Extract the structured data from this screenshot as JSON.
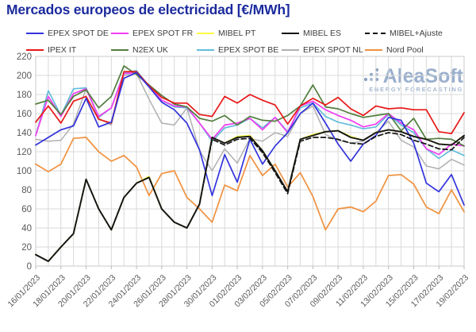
{
  "header": {
    "title": "Mercados europeos de electricidad [€/MWh]"
  },
  "watermark": {
    "brand": "AleaSoft",
    "tagline": "ENERGY FORECASTING"
  },
  "colors": {
    "title": "#1c2b9d",
    "grid": "#d9d9d9",
    "axis_text": "#595959",
    "legend_text": "#3d3d3d",
    "logo": "#92a9c9"
  },
  "chart_data": {
    "type": "line",
    "title": "Mercados europeos de electricidad [€/MWh]",
    "xlabel": "",
    "ylabel": "",
    "ylim": [
      0,
      220
    ],
    "y_ticks": [
      0,
      20,
      40,
      60,
      80,
      100,
      120,
      140,
      160,
      180,
      200,
      220
    ],
    "grid": true,
    "legend_position": "top",
    "x": [
      "16/01/2023",
      "17/01/2023",
      "18/01/2023",
      "19/01/2023",
      "20/01/2023",
      "21/01/2023",
      "22/01/2023",
      "23/01/2023",
      "24/01/2023",
      "25/01/2023",
      "26/01/2023",
      "27/01/2023",
      "28/01/2023",
      "29/01/2023",
      "30/01/2023",
      "31/01/2023",
      "01/02/2023",
      "02/02/2023",
      "03/02/2023",
      "04/02/2023",
      "05/02/2023",
      "06/02/2023",
      "07/02/2023",
      "08/02/2023",
      "09/02/2023",
      "10/02/2023",
      "11/02/2023",
      "12/02/2023",
      "13/02/2023",
      "14/02/2023",
      "15/02/2023",
      "16/02/2023",
      "17/02/2023",
      "18/02/2023",
      "19/02/2023"
    ],
    "x_tick_labels": [
      "16/01/2023",
      "18/01/2023",
      "20/01/2023",
      "22/01/2023",
      "24/01/2023",
      "26/01/2023",
      "28/01/2023",
      "30/01/2023",
      "01/02/2023",
      "03/02/2023",
      "05/02/2023",
      "07/02/2023",
      "09/02/2023",
      "11/02/2023",
      "13/02/2023",
      "15/02/2023",
      "17/02/2023",
      "19/02/2023"
    ],
    "x_tick_step": 2,
    "series": [
      {
        "name": "EPEX SPOT DE",
        "color": "#3233dd",
        "dash": null,
        "width": 1.7,
        "values": [
          127,
          135,
          143,
          147,
          176,
          146,
          151,
          197,
          203,
          188,
          172,
          164,
          150,
          122,
          74,
          117,
          88,
          133,
          107,
          126,
          140,
          160,
          171,
          150,
          128,
          110,
          128,
          137,
          156,
          153,
          129,
          87,
          78,
          96,
          64
        ]
      },
      {
        "name": "EPEX SPOT FR",
        "color": "#f23cf2",
        "dash": null,
        "width": 1.7,
        "values": [
          137,
          178,
          157,
          181,
          186,
          157,
          166,
          202,
          203,
          188,
          174,
          168,
          167,
          150,
          133,
          148,
          150,
          155,
          143,
          156,
          140,
          168,
          173,
          164,
          158,
          153,
          146,
          149,
          160,
          150,
          143,
          123,
          117,
          128,
          126
        ]
      },
      {
        "name": "MIBEL PT",
        "color": "#ffff45",
        "dash": null,
        "width": 1.8,
        "values": [
          12,
          5,
          20,
          34,
          91,
          60,
          38,
          72,
          87,
          94,
          60,
          46,
          40,
          65,
          135,
          129,
          136,
          137,
          121,
          100,
          78,
          133,
          138,
          141,
          142,
          136,
          132,
          140,
          143,
          141,
          136,
          133,
          128,
          127,
          137
        ]
      },
      {
        "name": "MIBEL ES",
        "color": "#141414",
        "dash": null,
        "width": 1.9,
        "values": [
          12,
          5,
          20,
          34,
          91,
          60,
          38,
          72,
          87,
          93,
          60,
          46,
          40,
          65,
          135,
          129,
          135,
          136,
          121,
          100,
          78,
          133,
          137,
          141,
          142,
          135,
          132,
          140,
          143,
          141,
          136,
          133,
          128,
          127,
          137
        ]
      },
      {
        "name": "MIBEL+Ajuste",
        "color": "#141414",
        "dash": "6,3.5",
        "width": 1.7,
        "values": [
          12,
          5,
          20,
          34,
          91,
          60,
          38,
          72,
          87,
          93,
          60,
          46,
          40,
          65,
          133,
          127,
          133,
          134,
          119,
          98,
          76,
          131,
          135,
          135,
          133,
          129,
          128,
          136,
          140,
          138,
          132,
          128,
          123,
          122,
          135
        ]
      },
      {
        "name": "IPEX IT",
        "color": "#e81717",
        "dash": null,
        "width": 1.7,
        "values": [
          151,
          168,
          150,
          173,
          178,
          154,
          150,
          204,
          204,
          189,
          177,
          171,
          171,
          159,
          157,
          178,
          171,
          180,
          174,
          169,
          149,
          168,
          176,
          169,
          177,
          165,
          158,
          168,
          165,
          166,
          164,
          164,
          141,
          139,
          161
        ]
      },
      {
        "name": "N2EX UK",
        "color": "#527e3f",
        "dash": null,
        "width": 1.7,
        "values": [
          170,
          174,
          159,
          178,
          185,
          166,
          178,
          210,
          201,
          190,
          179,
          170,
          167,
          155,
          152,
          158,
          148,
          157,
          153,
          152,
          158,
          168,
          190,
          167,
          165,
          160,
          156,
          158,
          160,
          142,
          155,
          133,
          134,
          133,
          126
        ]
      },
      {
        "name": "EPEX SPOT BE",
        "color": "#63bdda",
        "dash": null,
        "width": 1.7,
        "values": [
          137,
          184,
          158,
          186,
          187,
          156,
          166,
          203,
          205,
          189,
          174,
          167,
          166,
          150,
          131,
          145,
          148,
          155,
          145,
          156,
          141,
          166,
          171,
          157,
          151,
          148,
          144,
          146,
          159,
          148,
          140,
          123,
          113,
          122,
          116
        ]
      },
      {
        "name": "EPEX SPOT NL",
        "color": "#b0b0b0",
        "dash": null,
        "width": 1.5,
        "values": [
          133,
          131,
          132,
          149,
          186,
          155,
          148,
          200,
          202,
          175,
          150,
          148,
          166,
          121,
          100,
          123,
          108,
          134,
          131,
          140,
          136,
          160,
          168,
          138,
          132,
          129,
          131,
          140,
          152,
          132,
          125,
          105,
          102,
          112,
          106
        ]
      },
      {
        "name": "Nord Pool",
        "color": "#f0913e",
        "dash": null,
        "width": 1.7,
        "values": [
          107,
          99,
          107,
          134,
          135,
          120,
          110,
          116,
          104,
          74,
          97,
          100,
          72,
          60,
          46,
          85,
          79,
          116,
          95,
          107,
          83,
          98,
          73,
          38,
          60,
          62,
          57,
          68,
          95,
          96,
          86,
          62,
          55,
          80,
          57
        ]
      }
    ],
    "z_order": [
      "EPEX SPOT NL",
      "EPEX SPOT BE",
      "EPEX SPOT FR",
      "N2EX UK",
      "IPEX IT",
      "EPEX SPOT DE",
      "Nord Pool",
      "MIBEL PT",
      "MIBEL ES",
      "MIBEL+Ajuste"
    ]
  }
}
